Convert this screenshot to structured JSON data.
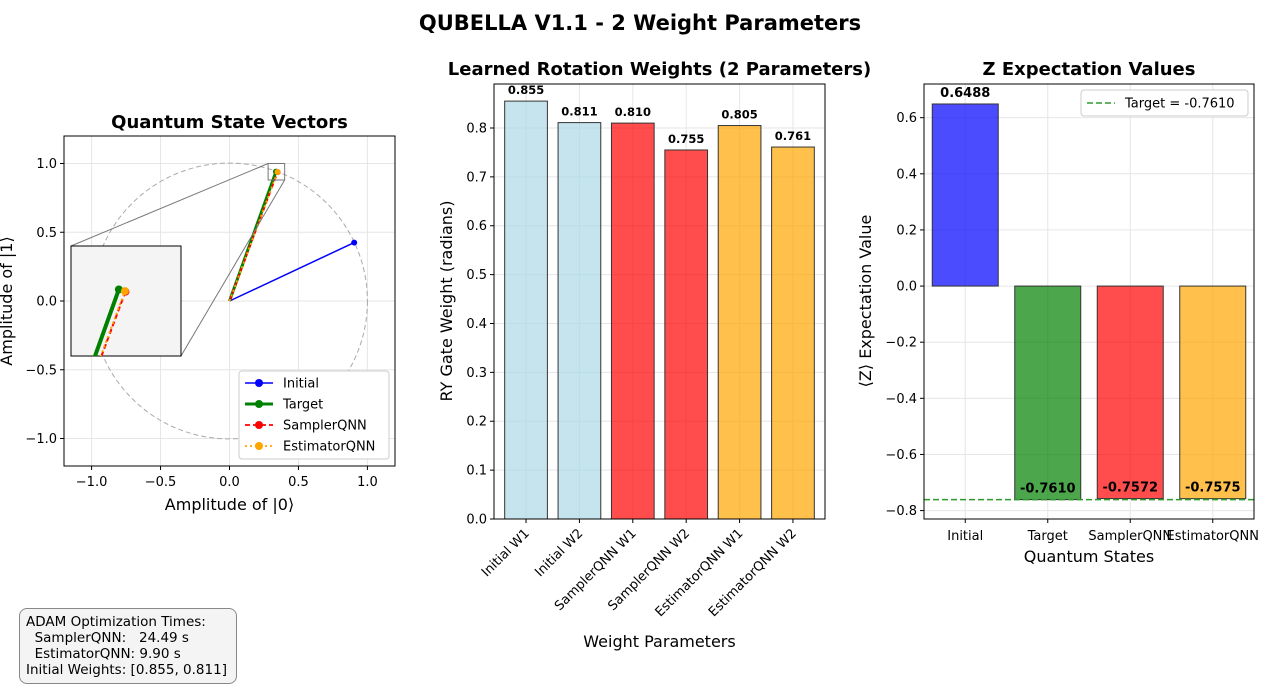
{
  "suptitle": "QUBELLA V1.1 - 2 Weight Parameters",
  "colors": {
    "initial": "#0000ff",
    "target": "#008000",
    "sampler": "#ff0000",
    "estimator": "#ffa500",
    "light": "#add8e6"
  },
  "chart_data": [
    {
      "type": "line",
      "title": "Quantum State Vectors",
      "xlabel": "Amplitude of |0⟩",
      "ylabel": "Amplitude of |1⟩",
      "xlim": [
        -1.2,
        1.2
      ],
      "ylim": [
        -1.2,
        1.2
      ],
      "xticks": [
        "−1.0",
        "−0.5",
        "0.0",
        "0.5",
        "1.0"
      ],
      "yticks": [
        "−1.0",
        "−0.5",
        "0.0",
        "0.5",
        "1.0"
      ],
      "grid": true,
      "legend_position": "bottom-right",
      "series": [
        {
          "name": "Initial",
          "points": [
            [
              0,
              0
            ],
            [
              0.904,
              0.425
            ]
          ]
        },
        {
          "name": "Target",
          "points": [
            [
              0,
              0
            ],
            [
              0.337,
              0.941
            ]
          ]
        },
        {
          "name": "SamplerQNN",
          "points": [
            [
              0,
              0
            ],
            [
              0.349,
              0.937
            ]
          ]
        },
        {
          "name": "EstimatorQNN",
          "points": [
            [
              0,
              0
            ],
            [
              0.348,
              0.938
            ]
          ]
        }
      ]
    },
    {
      "type": "bar",
      "title": "Learned Rotation Weights (2 Parameters)",
      "xlabel": "Weight Parameters",
      "ylabel": "RY Gate Weight (radians)",
      "ylim": [
        0,
        0.89
      ],
      "yticks": [
        "0.0",
        "0.1",
        "0.2",
        "0.3",
        "0.4",
        "0.5",
        "0.6",
        "0.7",
        "0.8"
      ],
      "grid": true,
      "categories": [
        "Initial W1",
        "Initial W2",
        "SamplerQNN W1",
        "SamplerQNN W2",
        "EstimatorQNN W1",
        "EstimatorQNN W2"
      ],
      "values": [
        0.855,
        0.811,
        0.81,
        0.755,
        0.805,
        0.761
      ],
      "value_labels": [
        "0.855",
        "0.811",
        "0.810",
        "0.755",
        "0.805",
        "0.761"
      ]
    },
    {
      "type": "bar",
      "title": "Z Expectation Values",
      "xlabel": "Quantum States",
      "ylabel": "⟨Z⟩ Expectation Value",
      "ylim": [
        -0.83,
        0.72
      ],
      "yticks": [
        "−0.8",
        "−0.6",
        "−0.4",
        "−0.2",
        "0.0",
        "0.2",
        "0.4",
        "0.6"
      ],
      "grid": true,
      "categories": [
        "Initial",
        "Target",
        "SamplerQNN",
        "EstimatorQNN"
      ],
      "values": [
        0.6488,
        -0.761,
        -0.7572,
        -0.7575
      ],
      "value_labels": [
        "0.6488",
        "-0.7610",
        "-0.7572",
        "-0.7575"
      ],
      "reference_line": {
        "value": -0.761,
        "label": "Target = -0.7610"
      },
      "legend_position": "top-right"
    }
  ],
  "info": {
    "line1": "ADAM Optimization Times:",
    "line2": "  SamplerQNN:   24.49 s",
    "line3": "  EstimatorQNN: 9.90 s",
    "line4": "Initial Weights: [0.855, 0.811]"
  }
}
